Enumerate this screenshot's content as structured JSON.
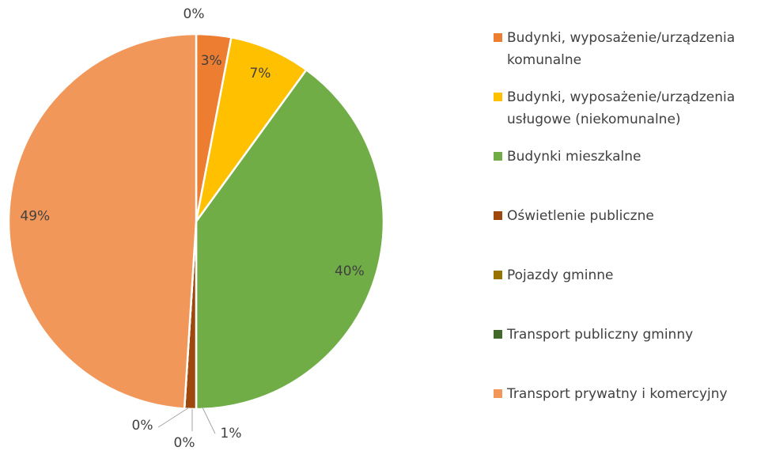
{
  "chart_data": {
    "type": "pie",
    "categories": [
      null,
      "Budynki, wyposażenie/urządzenia komunalne",
      "Budynki, wyposażenie/urządzenia usługowe (niekomunalne)",
      "Budynki mieszkalne",
      "Oświetlenie publiczne",
      "Pojazdy gminne",
      "Transport publiczny gminny",
      "Transport prywatny i komercyjny"
    ],
    "values": [
      0,
      3,
      7,
      40,
      1,
      0,
      0,
      49
    ],
    "value_labels": [
      "0%",
      "3%",
      "7%",
      "40%",
      "1%",
      "0%",
      "0%",
      "49%"
    ],
    "colors": [
      "#5b9bd5",
      "#ed7d31",
      "#ffc000",
      "#70ad47",
      "#9e480e",
      "#997300",
      "#43682b",
      "#f1975a"
    ],
    "legend": "right"
  }
}
